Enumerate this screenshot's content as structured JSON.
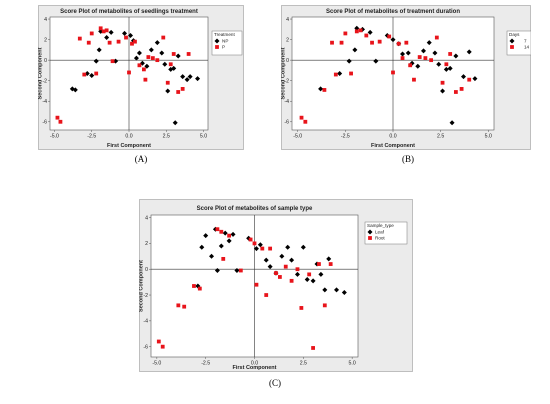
{
  "chart_data": [
    {
      "type": "scatter",
      "panel_label": "(A)",
      "title": "Score Plot of metabolites of seedlings treatment",
      "xlabel": "First Component",
      "ylabel": "Second Component",
      "xticks": [
        "-5.0",
        "-2.5",
        "0.0",
        "2.5",
        "5.0"
      ],
      "yticks": [
        "4",
        "2",
        "0",
        "-2",
        "-4",
        "-6"
      ],
      "xlim": [
        -5.3,
        5.3
      ],
      "ylim": [
        -6.8,
        4.2
      ],
      "grid": false,
      "reference_lines": {
        "x": 0,
        "y": 0
      },
      "legend": {
        "title": "Treatment",
        "placement": "top-right",
        "entries": [
          {
            "label": "NP",
            "marker": "diamond",
            "color": "#000000"
          },
          {
            "label": "P",
            "marker": "square",
            "color": "#e8141b"
          }
        ]
      },
      "series": [
        {
          "name": "NP",
          "marker": "diamond",
          "color": "#000000",
          "points": [
            [
              -3.8,
              -2.8
            ],
            [
              -3.6,
              -2.9
            ],
            [
              -2.8,
              -1.3
            ],
            [
              -2.5,
              -1.5
            ],
            [
              -2.2,
              -0.1
            ],
            [
              -2.0,
              1.0
            ],
            [
              -1.9,
              2.8
            ],
            [
              -1.5,
              2.2
            ],
            [
              -1.2,
              2.7
            ],
            [
              -0.9,
              -0.1
            ],
            [
              -0.3,
              2.6
            ],
            [
              0.1,
              2.4
            ],
            [
              0.3,
              1.9
            ],
            [
              0.5,
              0.2
            ],
            [
              0.7,
              0.7
            ],
            [
              0.9,
              -0.3
            ],
            [
              1.2,
              -0.6
            ],
            [
              1.5,
              1.0
            ],
            [
              1.9,
              1.7
            ],
            [
              2.2,
              0.7
            ],
            [
              2.4,
              -0.4
            ],
            [
              2.6,
              -3.0
            ],
            [
              2.8,
              -0.9
            ],
            [
              3.0,
              -0.8
            ],
            [
              3.1,
              -6.1
            ],
            [
              3.3,
              0.4
            ],
            [
              3.6,
              -1.6
            ],
            [
              3.9,
              -1.9
            ],
            [
              4.1,
              -1.6
            ],
            [
              4.6,
              -1.8
            ]
          ]
        },
        {
          "name": "P",
          "marker": "square",
          "color": "#e8141b",
          "points": [
            [
              -4.8,
              -5.6
            ],
            [
              -4.6,
              -6.0
            ],
            [
              -3.3,
              2.1
            ],
            [
              -3.0,
              -1.4
            ],
            [
              -2.7,
              1.7
            ],
            [
              -2.5,
              2.6
            ],
            [
              -2.2,
              -1.3
            ],
            [
              -1.9,
              3.1
            ],
            [
              -1.7,
              2.8
            ],
            [
              -1.5,
              2.9
            ],
            [
              -1.3,
              1.7
            ],
            [
              -1.1,
              -0.1
            ],
            [
              -0.7,
              1.8
            ],
            [
              -0.2,
              2.2
            ],
            [
              0.0,
              -1.2
            ],
            [
              0.2,
              1.6
            ],
            [
              0.4,
              1.8
            ],
            [
              0.7,
              -0.5
            ],
            [
              1.0,
              -0.9
            ],
            [
              1.1,
              -1.9
            ],
            [
              1.3,
              0.3
            ],
            [
              1.6,
              0.2
            ],
            [
              1.9,
              0.0
            ],
            [
              2.3,
              2.2
            ],
            [
              2.6,
              -2.2
            ],
            [
              2.8,
              -0.4
            ],
            [
              3.0,
              0.6
            ],
            [
              3.3,
              -3.1
            ],
            [
              3.6,
              -2.8
            ],
            [
              4.0,
              0.6
            ]
          ]
        }
      ]
    },
    {
      "type": "scatter",
      "panel_label": "(B)",
      "title": "Score Plot of metabolites of treatment duration",
      "xlabel": "First Component",
      "ylabel": "Second Component",
      "xticks": [
        "-5.0",
        "-2.5",
        "0.0",
        "2.5",
        "5.0"
      ],
      "yticks": [
        "4",
        "2",
        "0",
        "-2",
        "-4",
        "-6"
      ],
      "xlim": [
        -5.3,
        5.3
      ],
      "ylim": [
        -6.8,
        4.2
      ],
      "grid": false,
      "reference_lines": {
        "x": 0,
        "y": 0
      },
      "legend": {
        "title": "Days",
        "placement": "top-right",
        "entries": [
          {
            "label": "7",
            "marker": "diamond",
            "color": "#000000"
          },
          {
            "label": "14",
            "marker": "square",
            "color": "#e8141b"
          }
        ]
      },
      "series": [
        {
          "name": "7",
          "marker": "diamond",
          "color": "#000000",
          "points": [
            [
              -3.8,
              -2.8
            ],
            [
              -2.8,
              -1.3
            ],
            [
              -2.3,
              -0.1
            ],
            [
              -2.0,
              1.0
            ],
            [
              -1.9,
              3.1
            ],
            [
              -1.6,
              3.0
            ],
            [
              -1.2,
              2.7
            ],
            [
              -0.9,
              -0.1
            ],
            [
              -0.3,
              2.4
            ],
            [
              0.0,
              2.0
            ],
            [
              0.3,
              1.6
            ],
            [
              0.5,
              0.6
            ],
            [
              0.8,
              0.7
            ],
            [
              1.0,
              -0.3
            ],
            [
              1.3,
              -0.6
            ],
            [
              1.6,
              0.9
            ],
            [
              1.9,
              1.7
            ],
            [
              2.2,
              0.7
            ],
            [
              2.4,
              -0.4
            ],
            [
              2.6,
              -3.0
            ],
            [
              2.8,
              -0.9
            ],
            [
              3.0,
              -0.8
            ],
            [
              3.1,
              -6.1
            ],
            [
              3.3,
              0.4
            ],
            [
              3.7,
              -1.6
            ],
            [
              4.0,
              0.8
            ],
            [
              4.3,
              -1.8
            ]
          ]
        },
        {
          "name": "14",
          "marker": "square",
          "color": "#e8141b",
          "points": [
            [
              -4.8,
              -5.6
            ],
            [
              -4.6,
              -6.0
            ],
            [
              -3.6,
              -2.9
            ],
            [
              -3.2,
              1.7
            ],
            [
              -3.0,
              -1.4
            ],
            [
              -2.7,
              1.7
            ],
            [
              -2.5,
              2.6
            ],
            [
              -2.2,
              -1.3
            ],
            [
              -1.9,
              2.8
            ],
            [
              -1.7,
              2.9
            ],
            [
              -1.4,
              2.4
            ],
            [
              -1.1,
              1.7
            ],
            [
              -0.7,
              1.8
            ],
            [
              -0.2,
              2.3
            ],
            [
              0.0,
              -1.2
            ],
            [
              0.3,
              1.6
            ],
            [
              0.5,
              0.2
            ],
            [
              0.7,
              1.7
            ],
            [
              0.9,
              -0.5
            ],
            [
              1.1,
              -1.9
            ],
            [
              1.4,
              0.3
            ],
            [
              1.7,
              0.2
            ],
            [
              2.0,
              0.0
            ],
            [
              2.3,
              2.2
            ],
            [
              2.6,
              -2.2
            ],
            [
              2.8,
              -0.4
            ],
            [
              3.0,
              0.6
            ],
            [
              3.3,
              -3.1
            ],
            [
              3.6,
              -2.8
            ],
            [
              4.0,
              -1.9
            ]
          ]
        }
      ]
    },
    {
      "type": "scatter",
      "panel_label": "(C)",
      "title": "Score Plot of metabolites of sample type",
      "xlabel": "First Component",
      "ylabel": "Second Component",
      "xticks": [
        "-5.0",
        "-2.5",
        "0.0",
        "2.5",
        "5.0"
      ],
      "yticks": [
        "4",
        "2",
        "0",
        "-2",
        "-4",
        "-6"
      ],
      "xlim": [
        -5.3,
        5.3
      ],
      "ylim": [
        -6.8,
        4.2
      ],
      "grid": false,
      "reference_lines": {
        "x": 0,
        "y": 0
      },
      "legend": {
        "title": "Sample_type",
        "placement": "top-right",
        "entries": [
          {
            "label": "Leaf",
            "marker": "diamond",
            "color": "#000000"
          },
          {
            "label": "Root",
            "marker": "square",
            "color": "#e8141b"
          }
        ]
      },
      "series": [
        {
          "name": "Leaf",
          "marker": "diamond",
          "color": "#000000",
          "points": [
            [
              -2.9,
              -1.3
            ],
            [
              -2.7,
              1.7
            ],
            [
              -2.5,
              2.6
            ],
            [
              -2.2,
              1.0
            ],
            [
              -2.0,
              3.1
            ],
            [
              -1.9,
              -0.1
            ],
            [
              -1.7,
              1.8
            ],
            [
              -1.5,
              2.8
            ],
            [
              -1.3,
              2.2
            ],
            [
              -1.1,
              2.7
            ],
            [
              -0.9,
              -0.1
            ],
            [
              -0.3,
              2.4
            ],
            [
              0.1,
              1.6
            ],
            [
              0.3,
              1.9
            ],
            [
              0.6,
              0.7
            ],
            [
              0.8,
              0.2
            ],
            [
              1.1,
              -0.3
            ],
            [
              1.4,
              1.0
            ],
            [
              1.7,
              1.7
            ],
            [
              1.9,
              0.7
            ],
            [
              2.2,
              -0.4
            ],
            [
              2.5,
              1.7
            ],
            [
              2.7,
              -0.8
            ],
            [
              3.0,
              -0.9
            ],
            [
              3.2,
              0.4
            ],
            [
              3.4,
              -0.4
            ],
            [
              3.6,
              -1.6
            ],
            [
              3.8,
              0.8
            ],
            [
              4.2,
              -1.6
            ],
            [
              4.6,
              -1.8
            ]
          ]
        },
        {
          "name": "Root",
          "marker": "square",
          "color": "#e8141b",
          "points": [
            [
              -4.9,
              -5.6
            ],
            [
              -4.7,
              -6.0
            ],
            [
              -3.9,
              -2.8
            ],
            [
              -3.6,
              -2.9
            ],
            [
              -3.1,
              -1.3
            ],
            [
              -2.8,
              -1.5
            ],
            [
              -1.9,
              3.1
            ],
            [
              -1.7,
              2.9
            ],
            [
              -1.6,
              0.8
            ],
            [
              -1.3,
              2.6
            ],
            [
              -0.7,
              -0.1
            ],
            [
              -0.2,
              2.3
            ],
            [
              0.0,
              2.0
            ],
            [
              0.1,
              -1.2
            ],
            [
              0.4,
              1.6
            ],
            [
              0.6,
              -2.0
            ],
            [
              0.8,
              1.6
            ],
            [
              1.1,
              -0.3
            ],
            [
              1.3,
              -0.6
            ],
            [
              1.6,
              0.2
            ],
            [
              1.9,
              -0.9
            ],
            [
              2.2,
              0.0
            ],
            [
              2.4,
              -3.0
            ],
            [
              2.8,
              -0.4
            ],
            [
              3.0,
              -6.1
            ],
            [
              3.3,
              0.4
            ],
            [
              3.6,
              -2.8
            ],
            [
              3.9,
              0.4
            ]
          ]
        }
      ]
    }
  ]
}
